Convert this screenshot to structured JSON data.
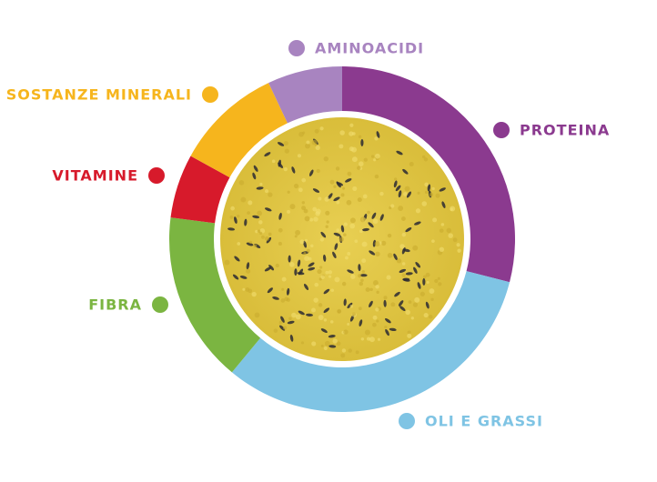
{
  "chart_data": {
    "type": "donut",
    "categories": [
      "PROTEINA",
      "OLI E GRASSI",
      "FIBRA",
      "VITAMINE",
      "SOSTANZE MINERALI",
      "AMINOACIDI"
    ],
    "values": [
      29,
      32,
      16,
      6,
      10,
      7
    ],
    "colors": [
      "#8b3a8f",
      "#7fc4e4",
      "#7bb541",
      "#d71a2b",
      "#f6b51d",
      "#a884c0"
    ]
  }
}
